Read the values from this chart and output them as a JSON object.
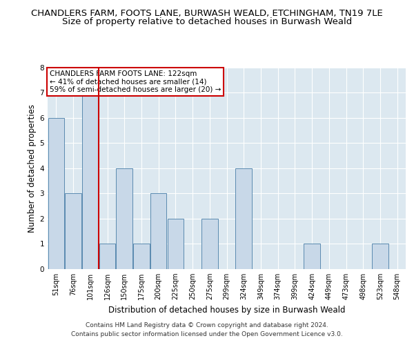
{
  "title": "CHANDLERS FARM, FOOTS LANE, BURWASH WEALD, ETCHINGHAM, TN19 7LE",
  "subtitle": "Size of property relative to detached houses in Burwash Weald",
  "xlabel": "Distribution of detached houses by size in Burwash Weald",
  "ylabel": "Number of detached properties",
  "categories": [
    "51sqm",
    "76sqm",
    "101sqm",
    "126sqm",
    "150sqm",
    "175sqm",
    "200sqm",
    "225sqm",
    "250sqm",
    "275sqm",
    "299sqm",
    "324sqm",
    "349sqm",
    "374sqm",
    "399sqm",
    "424sqm",
    "449sqm",
    "473sqm",
    "498sqm",
    "523sqm",
    "548sqm"
  ],
  "values": [
    6,
    3,
    7,
    1,
    4,
    1,
    3,
    2,
    0,
    2,
    0,
    4,
    0,
    0,
    0,
    1,
    0,
    0,
    0,
    1,
    0
  ],
  "bar_color": "#c8d8e8",
  "bar_edge_color": "#5a8ab0",
  "highlight_line_color": "#cc0000",
  "annotation_text": "CHANDLERS FARM FOOTS LANE: 122sqm\n← 41% of detached houses are smaller (14)\n59% of semi-detached houses are larger (20) →",
  "annotation_box_color": "#cc0000",
  "ylim": [
    0,
    8
  ],
  "yticks": [
    0,
    1,
    2,
    3,
    4,
    5,
    6,
    7,
    8
  ],
  "footer_line1": "Contains HM Land Registry data © Crown copyright and database right 2024.",
  "footer_line2": "Contains public sector information licensed under the Open Government Licence v3.0.",
  "plot_bg_color": "#dce8f0",
  "title_fontsize": 9.5,
  "subtitle_fontsize": 9.5,
  "axis_label_fontsize": 8.5,
  "tick_fontsize": 7,
  "footer_fontsize": 6.5,
  "annotation_fontsize": 7.5
}
